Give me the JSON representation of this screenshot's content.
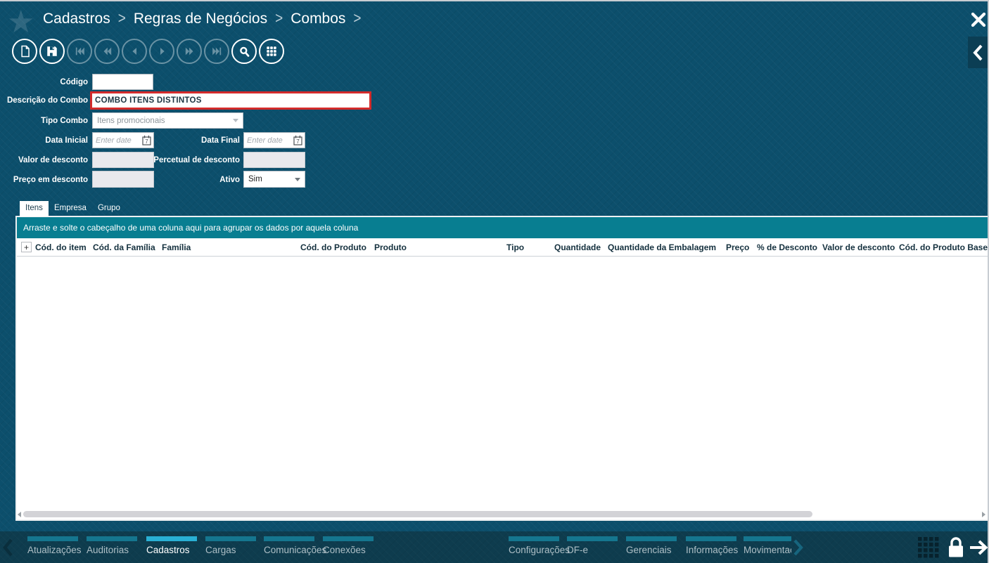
{
  "breadcrumb": [
    "Cadastros",
    "Regras de Negócios",
    "Combos"
  ],
  "header_icons": [
    "favorite-star-icon",
    "close-icon",
    "collapse-panel-chevron-icon"
  ],
  "toolbar": {
    "buttons": [
      {
        "name": "new-record",
        "icon": "new-document-icon",
        "enabled": true
      },
      {
        "name": "save",
        "icon": "save-icon",
        "enabled": true
      },
      {
        "name": "first-record",
        "icon": "first-record-icon",
        "enabled": false
      },
      {
        "name": "fast-rewind",
        "icon": "rewind-icon",
        "enabled": false
      },
      {
        "name": "previous",
        "icon": "previous-icon",
        "enabled": false
      },
      {
        "name": "next",
        "icon": "next-icon",
        "enabled": false
      },
      {
        "name": "fast-forward",
        "icon": "forward-icon",
        "enabled": false
      },
      {
        "name": "last-record",
        "icon": "last-record-icon",
        "enabled": false
      },
      {
        "name": "search",
        "icon": "search-icon",
        "enabled": true
      },
      {
        "name": "grid-view",
        "icon": "grid-view-icon",
        "enabled": true
      }
    ]
  },
  "form": {
    "codigo": {
      "label": "Código",
      "value": ""
    },
    "descricao": {
      "label": "Descrição do Combo",
      "value": "COMBO ITENS DISTINTOS"
    },
    "tipo_combo": {
      "label": "Tipo Combo",
      "value": "Itens promocionais",
      "disabled": true
    },
    "data_inicial": {
      "label": "Data Inicial",
      "value": "",
      "placeholder": "Enter date",
      "icon": "calendar-icon"
    },
    "data_final": {
      "label": "Data Final",
      "value": "",
      "placeholder": "Enter date",
      "icon": "calendar-icon"
    },
    "valor_desconto": {
      "label": "Valor de desconto",
      "value": "",
      "disabled": true
    },
    "percetual_desconto": {
      "label": "Percetual de desconto",
      "value": "",
      "disabled": true
    },
    "preco_desconto": {
      "label": "Preço em desconto",
      "value": "",
      "disabled": true
    },
    "ativo": {
      "label": "Ativo",
      "value": "Sim",
      "disabled": false
    }
  },
  "tabs": [
    {
      "label": "Itens",
      "active": true
    },
    {
      "label": "Empresa",
      "active": false
    },
    {
      "label": "Grupo",
      "active": false
    }
  ],
  "grid": {
    "group_hint": "Arraste e solte o cabeçalho de uma coluna aqui para agrupar os dados por aquela coluna",
    "columns": [
      "+",
      "Cód. do item",
      "Cód. da Família",
      "Família",
      "Cód. do Produto",
      "Produto",
      "Tipo",
      "Quantidade",
      "Quantidade da Embalagem",
      "Preço",
      "% de Desconto",
      "Valor de desconto",
      "Cód. do Produto Base"
    ],
    "rows": []
  },
  "bottom_nav": {
    "items": [
      {
        "label": "Atualizações",
        "active": false
      },
      {
        "label": "Auditorias",
        "active": false
      },
      {
        "label": "Cadastros",
        "active": true
      },
      {
        "label": "Cargas",
        "active": false
      },
      {
        "label": "Comunicações",
        "active": false
      },
      {
        "label": "Conexões",
        "active": false
      },
      {
        "label": "Configurações",
        "active": false
      },
      {
        "label": "DF-e",
        "active": false
      },
      {
        "label": "Gerenciais",
        "active": false
      },
      {
        "label": "Informações",
        "active": false
      },
      {
        "label": "Movimentaçõ",
        "active": false,
        "clipped": true
      }
    ],
    "icons": [
      "nav-scroll-left-chevron-icon",
      "nav-scroll-right-chevron-icon",
      "apps-grid-icon",
      "lock-icon",
      "forward-arrow-icon"
    ]
  },
  "colors": {
    "page_teal": "#0c4f6c",
    "bottom_bar": "#0e3c4e",
    "group_bar_teal": "#087e91",
    "active_nav_cyan": "#29b0d4",
    "inactive_nav_bar": "#15768f",
    "highlight_red": "#d32b2b",
    "disabled_field": "#e9e9ed"
  }
}
